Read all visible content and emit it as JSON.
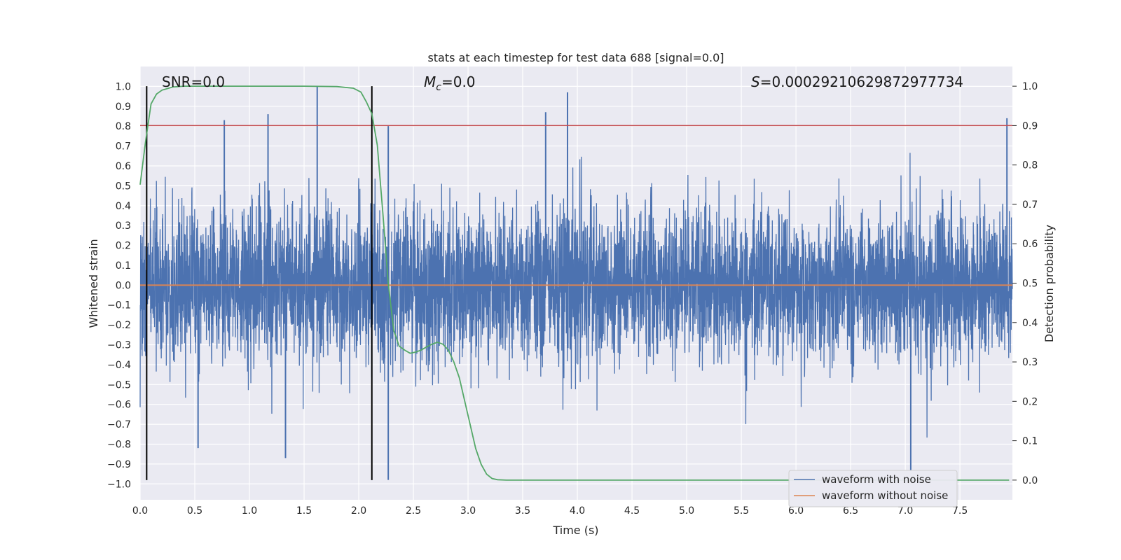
{
  "chart_data": {
    "type": "line",
    "title": "stats at each timestep for test data 688 [signal=0.0]",
    "xlabel": "Time (s)",
    "ylabel_left": "Whitened strain",
    "ylabel_right": "Detection probability",
    "xlim": [
      0.0,
      7.98
    ],
    "ylim_left": [
      -1.08,
      1.1
    ],
    "ylim_right": [
      -0.05,
      1.05
    ],
    "x_ticks": [
      "0.0",
      "0.5",
      "1.0",
      "1.5",
      "2.0",
      "2.5",
      "3.0",
      "3.5",
      "4.0",
      "4.5",
      "5.0",
      "5.5",
      "6.0",
      "6.5",
      "7.0",
      "7.5"
    ],
    "y_ticks_left": [
      "1.0",
      "0.9",
      "0.8",
      "0.7",
      "0.6",
      "0.5",
      "0.4",
      "0.3",
      "0.2",
      "0.1",
      "0.0",
      "−0.1",
      "−0.2",
      "−0.3",
      "−0.4",
      "−0.5",
      "−0.6",
      "−0.7",
      "−0.8",
      "−0.9",
      "−1.0"
    ],
    "y_ticks_right": [
      "1.0",
      "0.9",
      "0.8",
      "0.7",
      "0.6",
      "0.5",
      "0.4",
      "0.3",
      "0.2",
      "0.1",
      "0.0"
    ],
    "grid": true,
    "legend_position": "bottom-right",
    "annotations": {
      "snr": "SNR=0.0",
      "mc_symbol": "M",
      "mc_sub": "c",
      "mc_value": "=0.0",
      "s_symbol": "S",
      "s_value": "=0.00029210629872977734"
    },
    "threshold_right": 0.9,
    "vlines_x": [
      0.06,
      2.12
    ],
    "series": [
      {
        "name": "waveform with noise",
        "color": "#4c72b0",
        "axis": "left",
        "envelope": "dense noise, positive peaks mostly 0.3–0.7, negative peaks mostly −0.3 to −0.7",
        "notable_peaks": [
          [
            0.77,
            0.83
          ],
          [
            1.17,
            0.86
          ],
          [
            1.62,
            1.0
          ],
          [
            2.27,
            0.8
          ],
          [
            3.91,
            0.97
          ],
          [
            3.71,
            0.87
          ],
          [
            7.93,
            0.84
          ],
          [
            1.33,
            -0.87
          ],
          [
            2.27,
            -0.98
          ],
          [
            7.05,
            -0.93
          ],
          [
            0.53,
            -0.82
          ]
        ]
      },
      {
        "name": "waveform without noise",
        "color": "#dd8452",
        "axis": "left",
        "values_constant": 0.0
      },
      {
        "color": "#55a868",
        "axis": "right",
        "x": [
          0.0,
          0.05,
          0.1,
          0.15,
          0.2,
          0.3,
          0.4,
          0.6,
          1.0,
          1.5,
          1.8,
          1.95,
          2.02,
          2.07,
          2.12,
          2.17,
          2.22,
          2.27,
          2.32,
          2.37,
          2.42,
          2.47,
          2.52,
          2.57,
          2.62,
          2.67,
          2.72,
          2.77,
          2.82,
          2.87,
          2.92,
          2.97,
          3.02,
          3.07,
          3.12,
          3.17,
          3.22,
          3.27,
          3.35,
          3.5,
          4.0,
          5.0,
          6.0,
          7.0,
          7.95
        ],
        "y": [
          0.75,
          0.86,
          0.955,
          0.98,
          0.99,
          0.998,
          1.0,
          1.0,
          1.0,
          1.0,
          0.999,
          0.995,
          0.985,
          0.96,
          0.93,
          0.85,
          0.68,
          0.5,
          0.38,
          0.34,
          0.33,
          0.322,
          0.325,
          0.33,
          0.338,
          0.345,
          0.35,
          0.345,
          0.33,
          0.3,
          0.26,
          0.2,
          0.14,
          0.08,
          0.04,
          0.015,
          0.004,
          0.001,
          0.0,
          0.0,
          0.0,
          0.0,
          0.0,
          0.0,
          0.0
        ]
      }
    ],
    "threshold_color": "#c44e52",
    "vline_color": "#000000"
  }
}
